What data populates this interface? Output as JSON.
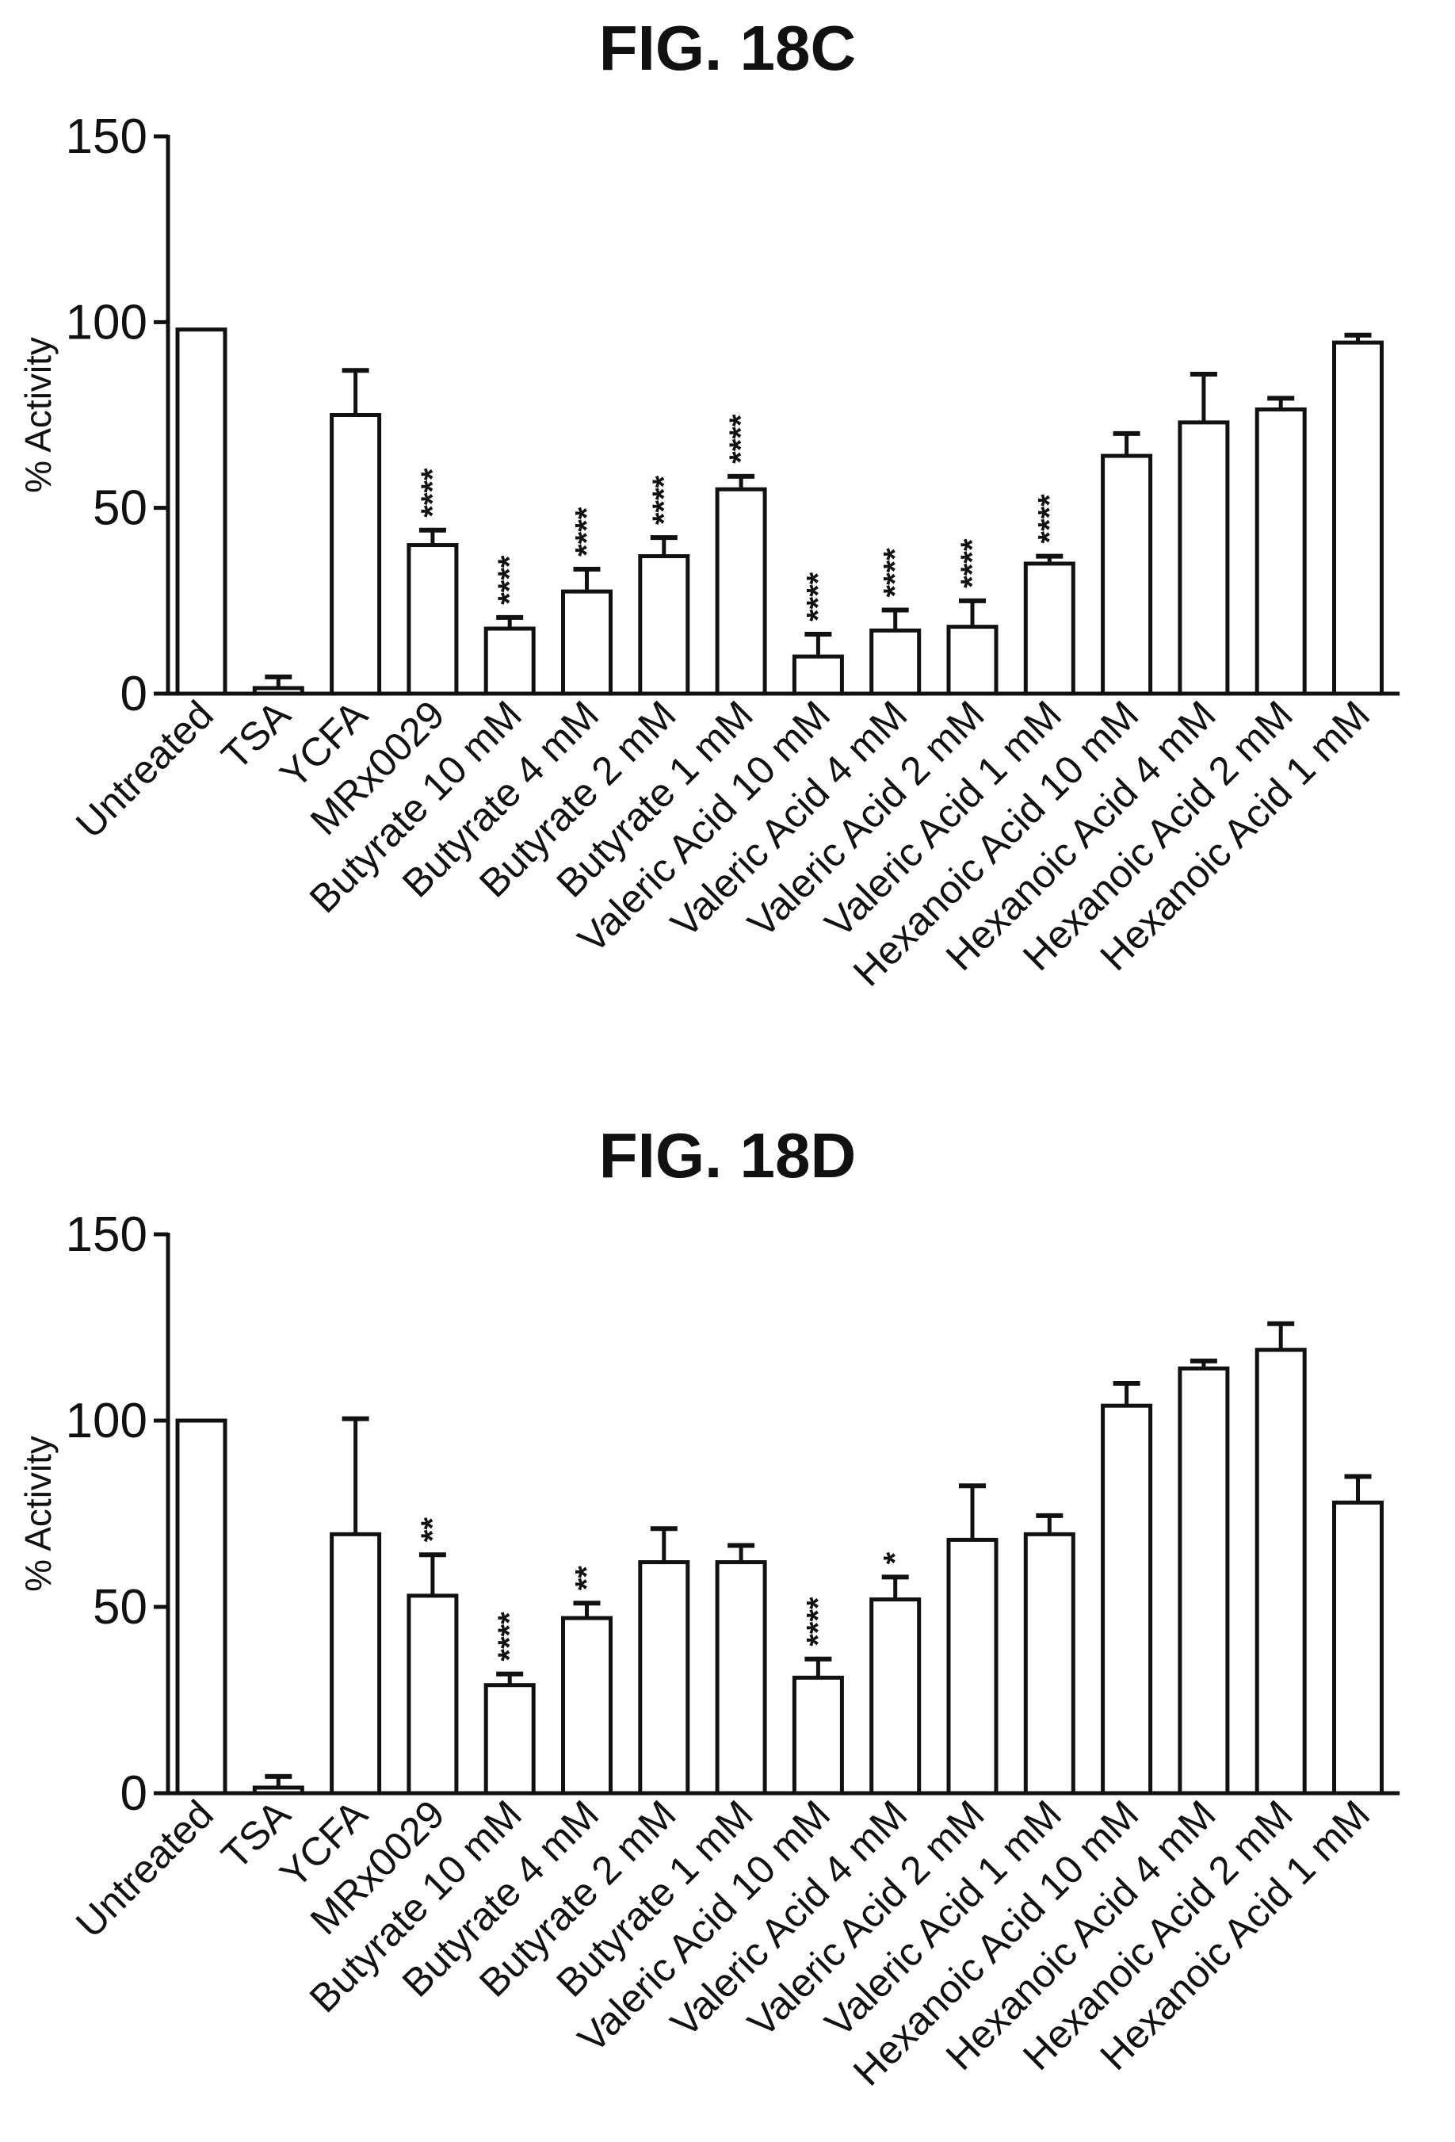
{
  "chart_data": [
    {
      "type": "bar",
      "title": "FIG. 18C",
      "xlabel": "",
      "ylabel": "% Activity",
      "ylim": [
        0,
        150
      ],
      "yticks": [
        0,
        50,
        100,
        150
      ],
      "grid": false,
      "categories": [
        "Untreated",
        "TSA",
        "YCFA",
        "MRx0029",
        "Butyrate 10 mM",
        "Butyrate 4 mM",
        "Butyrate 2 mM",
        "Butyrate 1 mM",
        "Valeric Acid 10 mM",
        "Valeric Acid 4 mM",
        "Valeric Acid 2 mM",
        "Valeric Acid 1 mM",
        "Hexanoic Acid 10 mM",
        "Hexanoic Acid 4 mM",
        "Hexanoic Acid 2 mM",
        "Hexanoic Acid 1 mM"
      ],
      "values": [
        98,
        1.5,
        75,
        40,
        17.5,
        27.5,
        37,
        55,
        10,
        17,
        18,
        35,
        64,
        73,
        76.5,
        94.5
      ],
      "error": [
        0,
        3,
        12,
        4,
        3,
        6,
        5,
        3.5,
        6,
        5.5,
        7,
        2,
        6,
        13,
        3,
        2
      ],
      "significance": [
        "",
        "",
        "",
        "****",
        "****",
        "****",
        "****",
        "****",
        "****",
        "****",
        "****",
        "****",
        "",
        "",
        "",
        ""
      ]
    },
    {
      "type": "bar",
      "title": "FIG. 18D",
      "xlabel": "",
      "ylabel": "% Activity",
      "ylim": [
        0,
        150
      ],
      "yticks": [
        0,
        50,
        100,
        150
      ],
      "grid": false,
      "categories": [
        "Untreated",
        "TSA",
        "YCFA",
        "MRx0029",
        "Butyrate 10 mM",
        "Butyrate 4 mM",
        "Butyrate 2 mM",
        "Butyrate 1 mM",
        "Valeric Acid 10 mM",
        "Valeric Acid 4 mM",
        "Valeric Acid 2 mM",
        "Valeric Acid 1 mM",
        "Hexanoic Acid 10 mM",
        "Hexanoic Acid 4 mM",
        "Hexanoic Acid 2 mM",
        "Hexanoic Acid 1 mM"
      ],
      "values": [
        100,
        1.5,
        69.5,
        53,
        29,
        47,
        62,
        62,
        31,
        52,
        68,
        69.5,
        104,
        114,
        119,
        78
      ],
      "error": [
        0,
        3,
        31,
        11,
        3,
        4,
        9,
        4.5,
        5,
        6,
        14.5,
        5,
        6,
        2,
        7,
        7
      ],
      "significance": [
        "",
        "",
        "",
        "**",
        "****",
        "**",
        "",
        "",
        "****",
        "*",
        "",
        "",
        "",
        "",
        "",
        ""
      ]
    }
  ]
}
